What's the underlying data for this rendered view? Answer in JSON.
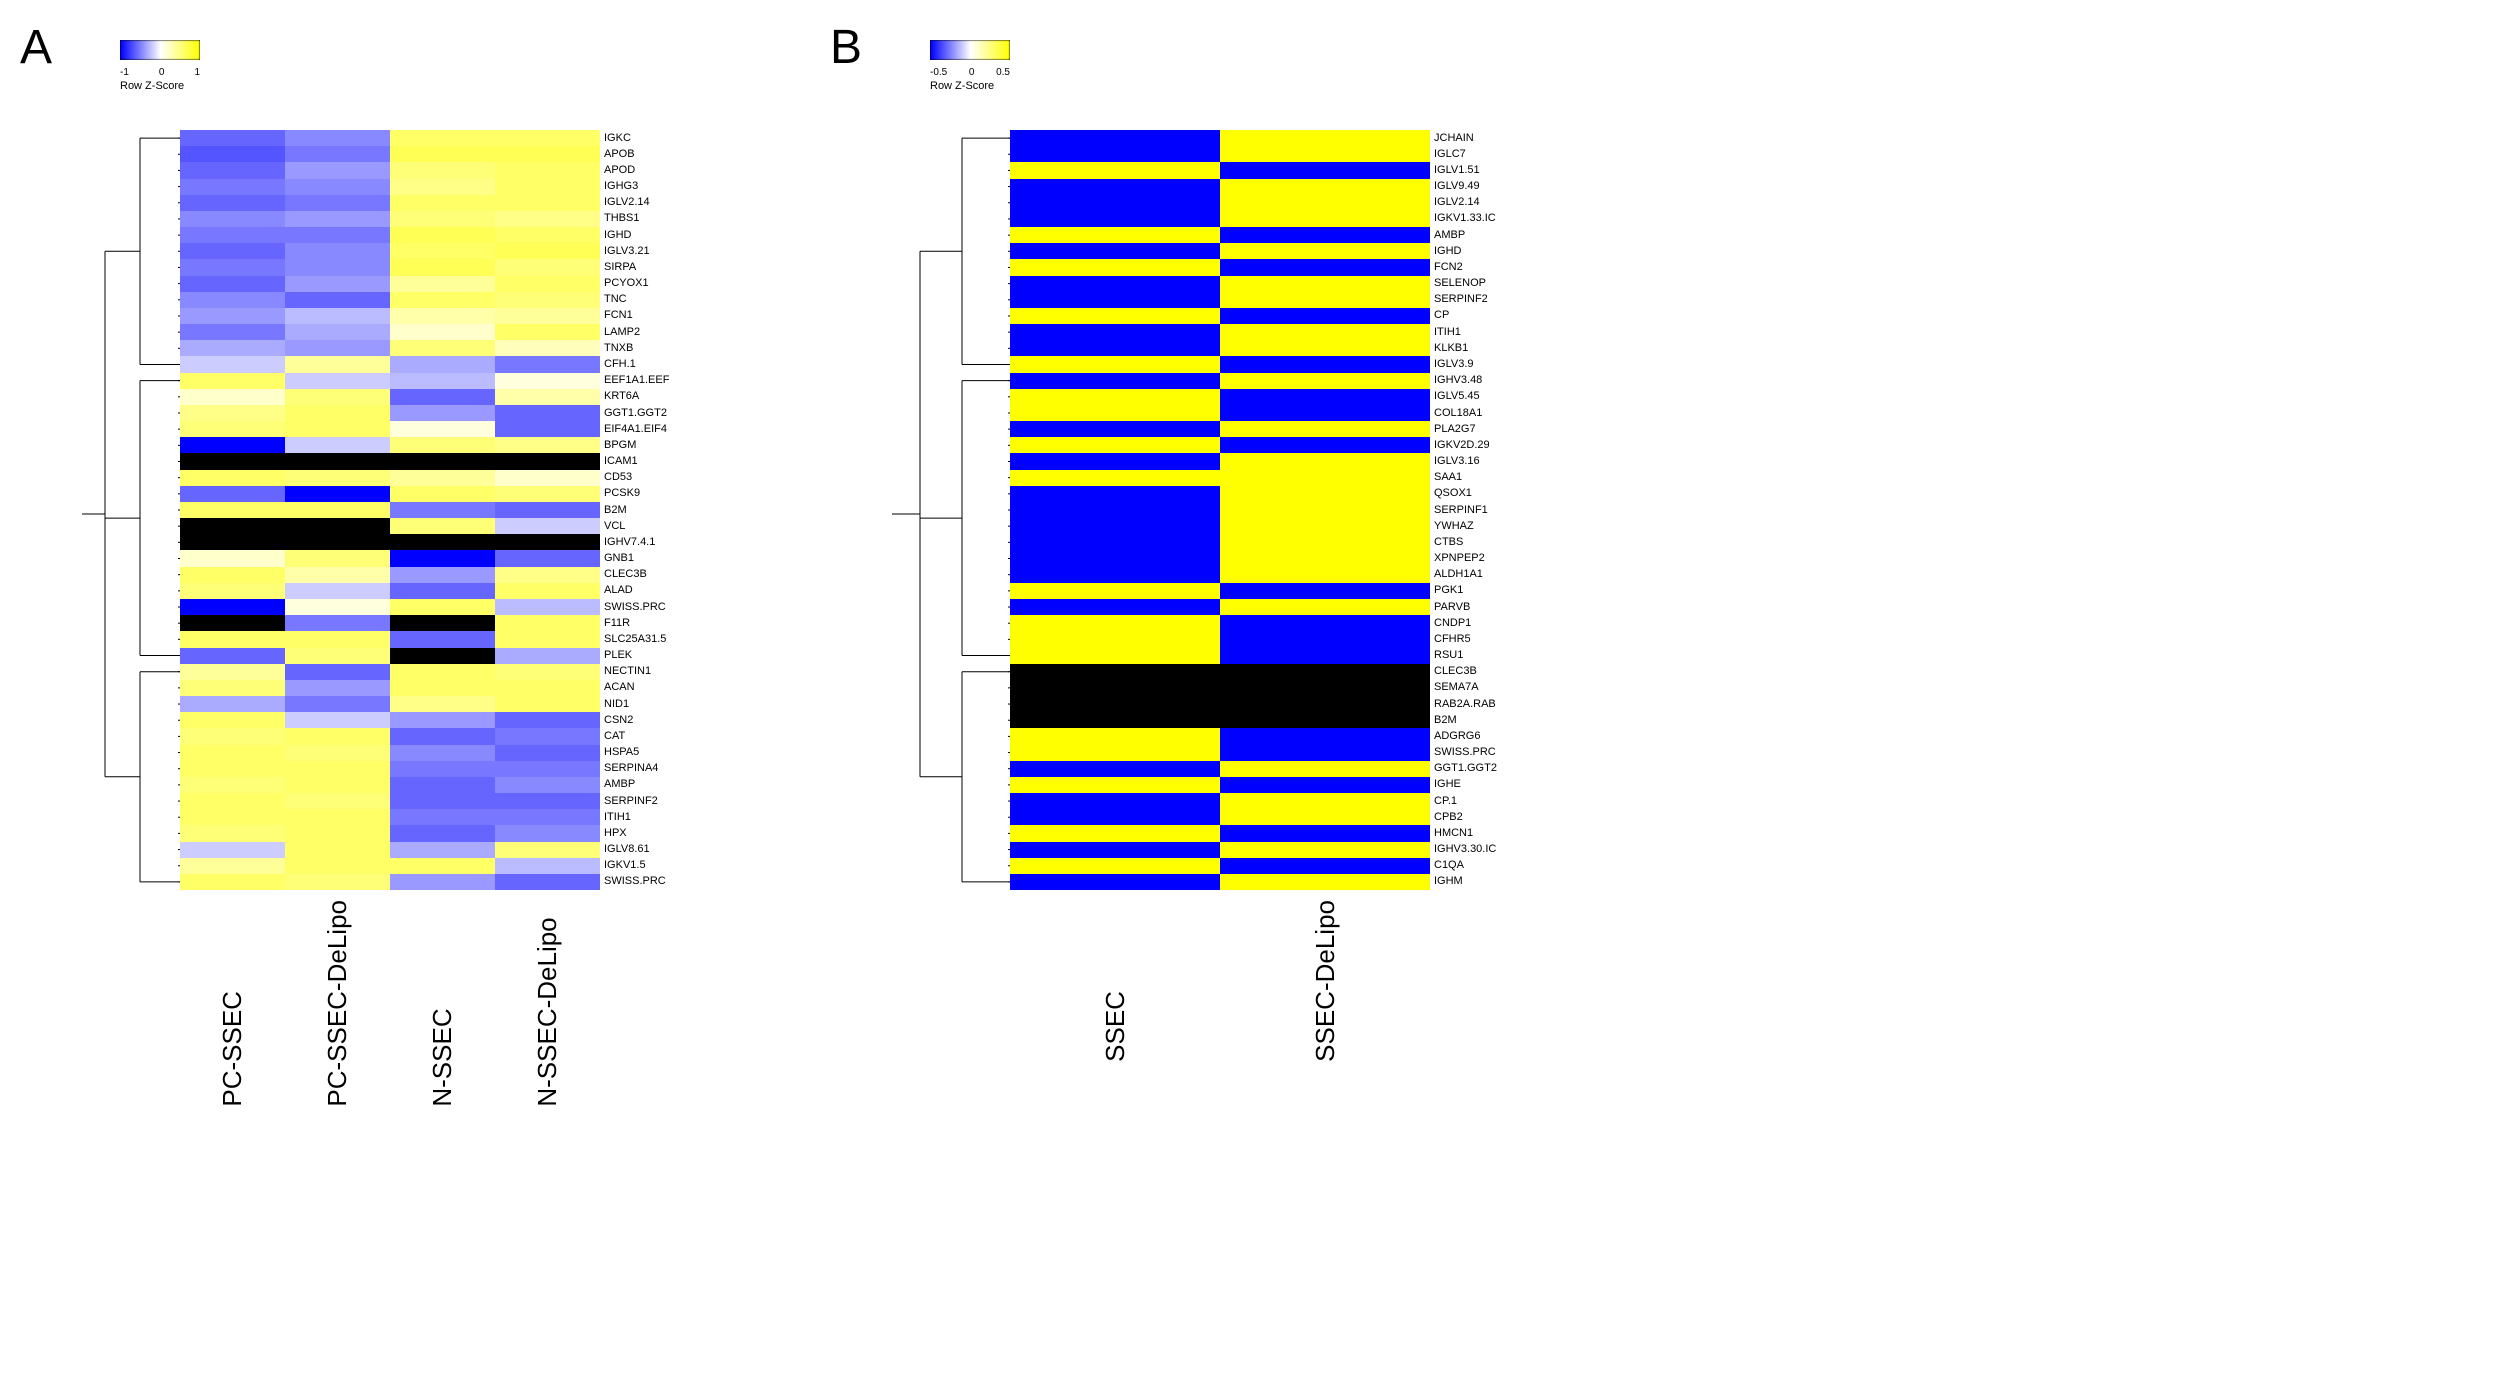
{
  "colors": {
    "low": "#0000ff",
    "mid": "#ffffff",
    "high": "#ffff00",
    "na": "#000000",
    "background": "#ffffff",
    "text": "#000000"
  },
  "panelA": {
    "label": "A",
    "legend": {
      "ticks": [
        "-1",
        "0",
        "1"
      ],
      "title": "Row Z-Score",
      "range": [
        -1.5,
        1.5
      ]
    },
    "columns": [
      "PC-SSEC",
      "PC-SSEC-DeLipo",
      "N-SSEC",
      "N-SSEC-DeLipo"
    ],
    "heatmap_width": 420,
    "heatmap_height": 760,
    "dendro_width": 100,
    "row_labels": [
      "IGKC",
      "APOB",
      "APOD",
      "IGHG3",
      "IGLV2.14",
      "THBS1",
      "IGHD",
      "IGLV3.21",
      "SIRPA",
      "PCYOX1",
      "TNC",
      "FCN1",
      "LAMP2",
      "TNXB",
      "CFH.1",
      "EEF1A1.EEF",
      "KRT6A",
      "GGT1.GGT2",
      "EIF4A1.EIF4",
      "BPGM",
      "ICAM1",
      "CD53",
      "PCSK9",
      "B2M",
      "VCL",
      "IGHV7.4.1",
      "GNB1",
      "CLEC3B",
      "ALAD",
      "SWISS.PRC",
      "F11R",
      "SLC25A31.5",
      "PLEK",
      "NECTIN1",
      "ACAN",
      "NID1",
      "CSN2",
      "CAT",
      "HSPA5",
      "SERPINA4",
      "AMBP",
      "SERPINF2",
      "ITIH1",
      "HPX",
      "IGLV8.61",
      "IGKV1.5",
      "SWISS.PRC"
    ],
    "data": [
      [
        -0.9,
        -0.7,
        0.9,
        0.9
      ],
      [
        -1.0,
        -0.8,
        1.0,
        1.0
      ],
      [
        -0.9,
        -0.6,
        0.8,
        0.9
      ],
      [
        -0.8,
        -0.7,
        0.7,
        0.9
      ],
      [
        -0.9,
        -0.8,
        0.9,
        0.9
      ],
      [
        -0.7,
        -0.6,
        0.8,
        0.7
      ],
      [
        -0.8,
        -0.8,
        1.0,
        0.9
      ],
      [
        -0.9,
        -0.7,
        0.9,
        1.0
      ],
      [
        -0.8,
        -0.7,
        1.0,
        0.8
      ],
      [
        -0.9,
        -0.6,
        0.6,
        0.9
      ],
      [
        -0.7,
        -0.9,
        0.9,
        0.8
      ],
      [
        -0.6,
        -0.4,
        0.5,
        0.6
      ],
      [
        -0.8,
        -0.5,
        0.3,
        0.9
      ],
      [
        -0.5,
        -0.6,
        0.8,
        0.4
      ],
      [
        -0.3,
        0.6,
        -0.5,
        -0.8
      ],
      [
        0.9,
        -0.3,
        -0.4,
        0.2
      ],
      [
        0.3,
        0.8,
        -0.9,
        0.5
      ],
      [
        0.7,
        0.9,
        -0.6,
        -0.9
      ],
      [
        0.8,
        0.9,
        0.2,
        -0.9
      ],
      [
        -1.5,
        -0.3,
        0.8,
        0.7
      ],
      [
        null,
        null,
        null,
        null
      ],
      [
        0.9,
        0.8,
        0.6,
        0.3
      ],
      [
        -0.9,
        -1.5,
        0.9,
        0.8
      ],
      [
        0.9,
        0.9,
        -0.8,
        -0.9
      ],
      [
        null,
        null,
        0.8,
        -0.3
      ],
      [
        null,
        null,
        null,
        null
      ],
      [
        0.3,
        0.8,
        -1.5,
        -0.9
      ],
      [
        0.9,
        0.5,
        -0.6,
        0.7
      ],
      [
        0.8,
        -0.3,
        -0.9,
        0.9
      ],
      [
        -1.5,
        0.2,
        0.9,
        -0.4
      ],
      [
        null,
        -0.8,
        null,
        0.9
      ],
      [
        0.9,
        0.9,
        -0.9,
        0.9
      ],
      [
        -0.9,
        0.8,
        null,
        -0.5
      ],
      [
        0.6,
        -0.9,
        0.9,
        0.8
      ],
      [
        0.8,
        -0.6,
        0.9,
        0.9
      ],
      [
        -0.5,
        -0.8,
        0.7,
        0.9
      ],
      [
        0.9,
        -0.3,
        -0.6,
        -0.9
      ],
      [
        0.8,
        0.9,
        -0.9,
        -0.8
      ],
      [
        0.9,
        0.8,
        -0.7,
        -0.9
      ],
      [
        0.9,
        0.9,
        -0.8,
        -0.8
      ],
      [
        0.8,
        0.9,
        -0.9,
        -0.7
      ],
      [
        0.9,
        0.8,
        -0.9,
        -0.9
      ],
      [
        0.9,
        0.9,
        -0.8,
        -0.8
      ],
      [
        0.8,
        0.9,
        -0.9,
        -0.7
      ],
      [
        -0.3,
        0.9,
        -0.5,
        0.8
      ],
      [
        0.6,
        0.9,
        0.9,
        -0.4
      ],
      [
        0.9,
        0.8,
        -0.6,
        -0.9
      ]
    ]
  },
  "panelB": {
    "label": "B",
    "legend": {
      "ticks": [
        "-0.5",
        "0",
        "0.5"
      ],
      "title": "Row Z-Score",
      "range": [
        -1,
        1
      ]
    },
    "columns": [
      "SSEC",
      "SSEC-DeLipo"
    ],
    "heatmap_width": 420,
    "heatmap_height": 760,
    "dendro_width": 120,
    "row_labels": [
      "JCHAIN",
      "IGLC7",
      "IGLV1.51",
      "IGLV9.49",
      "IGLV2.14",
      "IGKV1.33.IC",
      "AMBP",
      "IGHD",
      "FCN2",
      "SELENOP",
      "SERPINF2",
      "CP",
      "ITIH1",
      "KLKB1",
      "IGLV3.9",
      "IGHV3.48",
      "IGLV5.45",
      "COL18A1",
      "PLA2G7",
      "IGKV2D.29",
      "IGLV3.16",
      "SAA1",
      "QSOX1",
      "SERPINF1",
      "YWHAZ",
      "CTBS",
      "XPNPEP2",
      "ALDH1A1",
      "PGK1",
      "PARVB",
      "CNDP1",
      "CFHR5",
      "RSU1",
      "CLEC3B",
      "SEMA7A",
      "RAB2A.RAB",
      "B2M",
      "ADGRG6",
      "SWISS.PRC",
      "GGT1.GGT2",
      "IGHE",
      "CP.1",
      "CPB2",
      "HMCN1",
      "IGHV3.30.IC",
      "C1QA",
      "IGHM"
    ],
    "data": [
      [
        -1,
        1
      ],
      [
        -1,
        1
      ],
      [
        1,
        -1
      ],
      [
        -1,
        1
      ],
      [
        -1,
        1
      ],
      [
        -1,
        1
      ],
      [
        1,
        -1
      ],
      [
        -1,
        1
      ],
      [
        1,
        -1
      ],
      [
        -1,
        1
      ],
      [
        -1,
        1
      ],
      [
        1,
        -1
      ],
      [
        -1,
        1
      ],
      [
        -1,
        1
      ],
      [
        1,
        -1
      ],
      [
        -1,
        1
      ],
      [
        1,
        -1
      ],
      [
        1,
        -1
      ],
      [
        -1,
        1
      ],
      [
        1,
        -1
      ],
      [
        -1,
        1
      ],
      [
        1,
        1
      ],
      [
        -1,
        1
      ],
      [
        -1,
        1
      ],
      [
        -1,
        1
      ],
      [
        -1,
        1
      ],
      [
        -1,
        1
      ],
      [
        -1,
        1
      ],
      [
        1,
        -1
      ],
      [
        -1,
        1
      ],
      [
        1,
        -1
      ],
      [
        1,
        -1
      ],
      [
        1,
        -1
      ],
      [
        null,
        null
      ],
      [
        null,
        null
      ],
      [
        null,
        null
      ],
      [
        null,
        null
      ],
      [
        1,
        -1
      ],
      [
        1,
        -1
      ],
      [
        -1,
        1
      ],
      [
        1,
        -1
      ],
      [
        -1,
        1
      ],
      [
        -1,
        1
      ],
      [
        1,
        -1
      ],
      [
        -1,
        1
      ],
      [
        1,
        -1
      ],
      [
        -1,
        1
      ]
    ]
  }
}
